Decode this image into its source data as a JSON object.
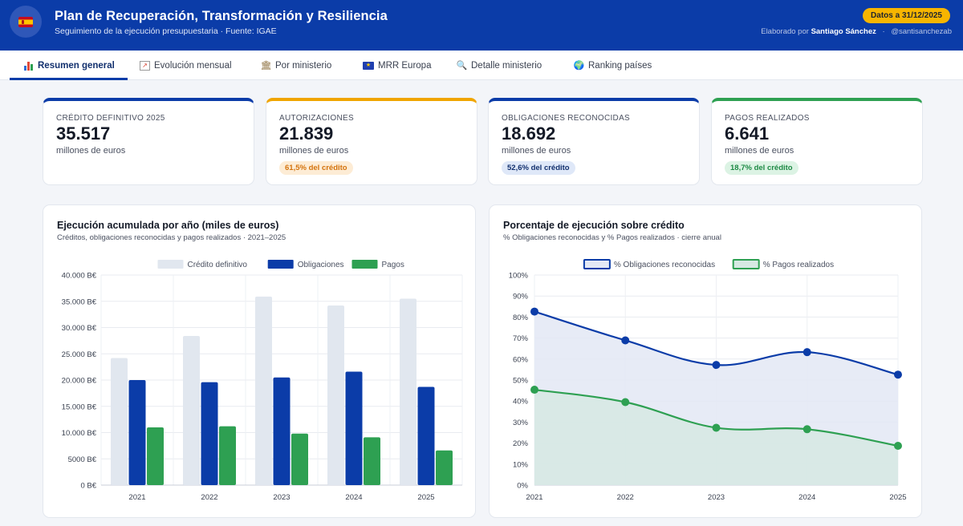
{
  "header": {
    "title": "Plan de Recuperación, Transformación y Resiliencia",
    "subtitle": "Seguimiento de la ejecución presupuestaria · Fuente: IGAE",
    "date_badge": "Datos a 31/12/2025",
    "credits_prefix": "Elaborado por",
    "author": "Santiago Sánchez",
    "handle": "@santisanchezab",
    "flag_icon": "spain-flag-icon"
  },
  "tabs": [
    {
      "label": "Resumen general",
      "icon": "bar-chart-icon",
      "active": true
    },
    {
      "label": "Evolución mensual",
      "icon": "line-chart-icon",
      "active": false
    },
    {
      "label": "Por ministerio",
      "icon": "bank-icon",
      "active": false
    },
    {
      "label": "MRR Europa",
      "icon": "eu-flag-icon",
      "active": false
    },
    {
      "label": "Detalle ministerio",
      "icon": "magnifier-icon",
      "active": false
    },
    {
      "label": "Ranking países",
      "icon": "globe-icon",
      "active": false
    }
  ],
  "kpis": [
    {
      "label": "CRÉDITO DEFINITIVO 2025",
      "value": "35.517",
      "unit": "millones de euros",
      "pill": "",
      "accent": "#0b3ca8"
    },
    {
      "label": "AUTORIZACIONES",
      "value": "21.839",
      "unit": "millones de euros",
      "pill": "61,5% del crédito",
      "accent": "#f0a500"
    },
    {
      "label": "OBLIGACIONES RECONOCIDAS",
      "value": "18.692",
      "unit": "millones de euros",
      "pill": "52,6% del crédito",
      "accent": "#0b3ca8"
    },
    {
      "label": "PAGOS REALIZADOS",
      "value": "6.641",
      "unit": "millones de euros",
      "pill": "18,7% del crédito",
      "accent": "#2ea052"
    }
  ],
  "charts": {
    "bar": {
      "title": "Ejecución acumulada por año (miles de euros)",
      "subtitle": "Créditos, obligaciones reconocidas y pagos realizados · 2021–2025"
    },
    "line": {
      "title": "Porcentaje de ejecución sobre crédito",
      "subtitle": "% Obligaciones reconocidas y % Pagos realizados · cierre anual"
    }
  },
  "chart_data": [
    {
      "type": "bar",
      "title": "Ejecución acumulada por año (miles de euros)",
      "categories": [
        "2021",
        "2022",
        "2023",
        "2024",
        "2025"
      ],
      "series": [
        {
          "name": "Crédito definitivo",
          "color": "#e1e7ef",
          "values": [
            24200,
            28400,
            35900,
            34200,
            35500
          ]
        },
        {
          "name": "Obligaciones",
          "color": "#0b3ca8",
          "values": [
            20000,
            19600,
            20500,
            21600,
            18700
          ]
        },
        {
          "name": "Pagos",
          "color": "#2ea052",
          "values": [
            11000,
            11200,
            9800,
            9100,
            6600
          ]
        }
      ],
      "ylim": [
        0,
        40000
      ],
      "yticks": [
        0,
        5000,
        10000,
        15000,
        20000,
        25000,
        30000,
        35000,
        40000
      ],
      "ytick_labels": [
        "0 B€",
        "5000 B€",
        "10.000 B€",
        "15.000 B€",
        "20.000 B€",
        "25.000 B€",
        "30.000 B€",
        "35.000 B€",
        "40.000 B€"
      ],
      "legend_position": "top-center"
    },
    {
      "type": "line",
      "title": "Porcentaje de ejecución sobre crédito",
      "x": [
        "2021",
        "2022",
        "2023",
        "2024",
        "2025"
      ],
      "series": [
        {
          "name": "% Obligaciones reconocidas",
          "color": "#0b3ca8",
          "fill": "#e3e8f5",
          "values": [
            82.6,
            68.9,
            57.2,
            63.3,
            52.6
          ]
        },
        {
          "name": "% Pagos realizados",
          "color": "#2ea052",
          "fill": "#d6e9e3",
          "values": [
            45.4,
            39.5,
            27.3,
            26.6,
            18.7
          ]
        }
      ],
      "ylim": [
        0,
        100
      ],
      "yticks": [
        0,
        10,
        20,
        30,
        40,
        50,
        60,
        70,
        80,
        90,
        100
      ],
      "ytick_labels": [
        "0%",
        "10%",
        "20%",
        "30%",
        "40%",
        "50%",
        "60%",
        "70%",
        "80%",
        "90%",
        "100%"
      ],
      "legend_position": "top-center"
    }
  ]
}
